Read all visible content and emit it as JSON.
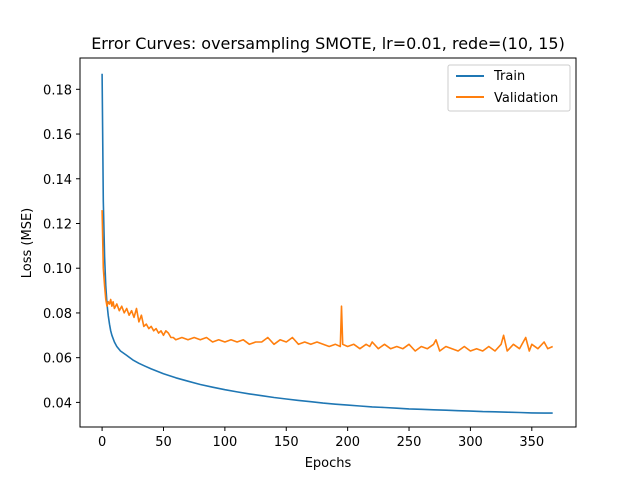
{
  "chart_data": {
    "type": "line",
    "title": "Error Curves: oversampling SMOTE, lr=0.01, rede=(10, 15)",
    "xlabel": "Epochs",
    "ylabel": "Loss (MSE)",
    "xlim": [
      -18,
      386
    ],
    "ylim": [
      0.029,
      0.194
    ],
    "x_ticks": [
      0,
      50,
      100,
      150,
      200,
      250,
      300,
      350
    ],
    "y_ticks": [
      0.04,
      0.06,
      0.08,
      0.1,
      0.12,
      0.14,
      0.16,
      0.18
    ],
    "x_tick_labels": [
      "0",
      "50",
      "100",
      "150",
      "200",
      "250",
      "300",
      "350"
    ],
    "y_tick_labels": [
      "0.04",
      "0.06",
      "0.08",
      "0.10",
      "0.12",
      "0.14",
      "0.16",
      "0.18"
    ],
    "grid": false,
    "legend_position": "top-right",
    "series": [
      {
        "name": "Train",
        "color": "#1f77b4",
        "points": [
          [
            0,
            0.187
          ],
          [
            1,
            0.13
          ],
          [
            2,
            0.105
          ],
          [
            3,
            0.092
          ],
          [
            4,
            0.084
          ],
          [
            5,
            0.079
          ],
          [
            6,
            0.075
          ],
          [
            7,
            0.072
          ],
          [
            8,
            0.07
          ],
          [
            10,
            0.067
          ],
          [
            12,
            0.065
          ],
          [
            15,
            0.063
          ],
          [
            20,
            0.061
          ],
          [
            25,
            0.059
          ],
          [
            30,
            0.0575
          ],
          [
            35,
            0.0562
          ],
          [
            40,
            0.055
          ],
          [
            50,
            0.0528
          ],
          [
            60,
            0.051
          ],
          [
            70,
            0.0495
          ],
          [
            80,
            0.048
          ],
          [
            90,
            0.0468
          ],
          [
            100,
            0.0457
          ],
          [
            110,
            0.0447
          ],
          [
            120,
            0.0438
          ],
          [
            130,
            0.043
          ],
          [
            140,
            0.0422
          ],
          [
            150,
            0.0415
          ],
          [
            160,
            0.0409
          ],
          [
            170,
            0.0403
          ],
          [
            180,
            0.0397
          ],
          [
            190,
            0.0392
          ],
          [
            200,
            0.0388
          ],
          [
            210,
            0.0384
          ],
          [
            220,
            0.038
          ],
          [
            230,
            0.0377
          ],
          [
            240,
            0.0374
          ],
          [
            250,
            0.0371
          ],
          [
            260,
            0.0369
          ],
          [
            270,
            0.0367
          ],
          [
            280,
            0.0365
          ],
          [
            290,
            0.0363
          ],
          [
            300,
            0.0361
          ],
          [
            310,
            0.0359
          ],
          [
            320,
            0.0358
          ],
          [
            330,
            0.0356
          ],
          [
            340,
            0.0355
          ],
          [
            350,
            0.0353
          ],
          [
            360,
            0.0352
          ],
          [
            367,
            0.0352
          ]
        ]
      },
      {
        "name": "Validation",
        "color": "#ff7f0e",
        "points": [
          [
            0,
            0.126
          ],
          [
            1,
            0.1
          ],
          [
            2,
            0.092
          ],
          [
            3,
            0.086
          ],
          [
            4,
            0.083
          ],
          [
            5,
            0.085
          ],
          [
            6,
            0.084
          ],
          [
            7,
            0.086
          ],
          [
            8,
            0.083
          ],
          [
            9,
            0.085
          ],
          [
            10,
            0.082
          ],
          [
            12,
            0.084
          ],
          [
            14,
            0.081
          ],
          [
            16,
            0.083
          ],
          [
            18,
            0.08
          ],
          [
            20,
            0.082
          ],
          [
            22,
            0.079
          ],
          [
            24,
            0.081
          ],
          [
            26,
            0.078
          ],
          [
            28,
            0.082
          ],
          [
            30,
            0.076
          ],
          [
            32,
            0.079
          ],
          [
            34,
            0.074
          ],
          [
            36,
            0.075
          ],
          [
            38,
            0.073
          ],
          [
            40,
            0.074
          ],
          [
            42,
            0.072
          ],
          [
            44,
            0.073
          ],
          [
            46,
            0.071
          ],
          [
            48,
            0.072
          ],
          [
            50,
            0.07
          ],
          [
            52,
            0.072
          ],
          [
            54,
            0.071
          ],
          [
            56,
            0.069
          ],
          [
            58,
            0.069
          ],
          [
            60,
            0.068
          ],
          [
            65,
            0.069
          ],
          [
            70,
            0.068
          ],
          [
            75,
            0.069
          ],
          [
            80,
            0.068
          ],
          [
            85,
            0.069
          ],
          [
            90,
            0.067
          ],
          [
            95,
            0.068
          ],
          [
            100,
            0.067
          ],
          [
            105,
            0.068
          ],
          [
            110,
            0.067
          ],
          [
            115,
            0.068
          ],
          [
            120,
            0.066
          ],
          [
            125,
            0.067
          ],
          [
            130,
            0.067
          ],
          [
            135,
            0.069
          ],
          [
            140,
            0.066
          ],
          [
            145,
            0.068
          ],
          [
            150,
            0.067
          ],
          [
            155,
            0.069
          ],
          [
            160,
            0.066
          ],
          [
            165,
            0.067
          ],
          [
            170,
            0.066
          ],
          [
            175,
            0.067
          ],
          [
            180,
            0.066
          ],
          [
            185,
            0.065
          ],
          [
            190,
            0.066
          ],
          [
            194,
            0.065
          ],
          [
            195,
            0.083
          ],
          [
            196,
            0.066
          ],
          [
            200,
            0.065
          ],
          [
            205,
            0.066
          ],
          [
            210,
            0.064
          ],
          [
            215,
            0.066
          ],
          [
            218,
            0.065
          ],
          [
            220,
            0.067
          ],
          [
            225,
            0.064
          ],
          [
            230,
            0.066
          ],
          [
            235,
            0.064
          ],
          [
            240,
            0.065
          ],
          [
            245,
            0.064
          ],
          [
            250,
            0.066
          ],
          [
            255,
            0.063
          ],
          [
            260,
            0.065
          ],
          [
            265,
            0.064
          ],
          [
            270,
            0.066
          ],
          [
            272,
            0.068
          ],
          [
            275,
            0.063
          ],
          [
            280,
            0.065
          ],
          [
            285,
            0.064
          ],
          [
            290,
            0.063
          ],
          [
            295,
            0.065
          ],
          [
            300,
            0.063
          ],
          [
            305,
            0.064
          ],
          [
            310,
            0.063
          ],
          [
            315,
            0.065
          ],
          [
            320,
            0.063
          ],
          [
            325,
            0.066
          ],
          [
            327,
            0.07
          ],
          [
            330,
            0.063
          ],
          [
            335,
            0.066
          ],
          [
            340,
            0.064
          ],
          [
            345,
            0.069
          ],
          [
            348,
            0.063
          ],
          [
            350,
            0.066
          ],
          [
            355,
            0.064
          ],
          [
            360,
            0.067
          ],
          [
            363,
            0.064
          ],
          [
            367,
            0.065
          ]
        ]
      }
    ]
  }
}
